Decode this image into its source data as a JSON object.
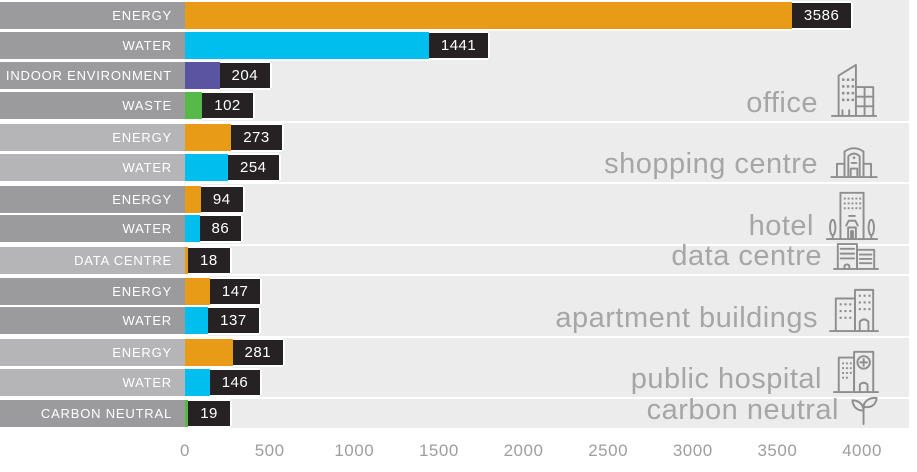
{
  "chart_data": {
    "type": "bar",
    "orientation": "horizontal",
    "title": "",
    "xlabel": "",
    "xlim": [
      0,
      4000
    ],
    "x_ticks": [
      "0",
      "500",
      "1000",
      "1500",
      "2000",
      "2500",
      "3000",
      "3500",
      "4000"
    ],
    "grid": false,
    "value_label_style": "black box at end of each bar",
    "groups": [
      {
        "label": "office",
        "icon": "office-building-icon",
        "shade": "dark",
        "rows": [
          {
            "category": "ENERGY",
            "value": 3586,
            "color_key": "energy_orange"
          },
          {
            "category": "WATER",
            "value": 1441,
            "color_key": "water_cyan"
          },
          {
            "category": "INDOOR ENVIRONMENT",
            "value": 204,
            "color_key": "indoor_purple"
          },
          {
            "category": "WASTE",
            "value": 102,
            "color_key": "waste_green"
          }
        ]
      },
      {
        "label": "shopping centre",
        "icon": "shopping-centre-icon",
        "shade": "light",
        "rows": [
          {
            "category": "ENERGY",
            "value": 273,
            "color_key": "energy_orange"
          },
          {
            "category": "WATER",
            "value": 254,
            "color_key": "water_cyan"
          }
        ]
      },
      {
        "label": "hotel",
        "icon": "hotel-icon",
        "shade": "dark",
        "rows": [
          {
            "category": "ENERGY",
            "value": 94,
            "color_key": "energy_orange"
          },
          {
            "category": "WATER",
            "value": 86,
            "color_key": "water_cyan"
          }
        ]
      },
      {
        "label": "data centre",
        "icon": "data-centre-icon",
        "shade": "light",
        "rows": [
          {
            "category": "DATA CENTRE",
            "value": 18,
            "color_key": "energy_orange"
          }
        ]
      },
      {
        "label": "apartment buildings",
        "icon": "apartment-buildings-icon",
        "shade": "dark",
        "rows": [
          {
            "category": "ENERGY",
            "value": 147,
            "color_key": "energy_orange"
          },
          {
            "category": "WATER",
            "value": 137,
            "color_key": "water_cyan"
          }
        ]
      },
      {
        "label": "public hospital",
        "icon": "public-hospital-icon",
        "shade": "light",
        "rows": [
          {
            "category": "ENERGY",
            "value": 281,
            "color_key": "energy_orange"
          },
          {
            "category": "WATER",
            "value": 146,
            "color_key": "water_cyan"
          }
        ]
      },
      {
        "label": "carbon neutral",
        "icon": "carbon-neutral-icon",
        "shade": "dark",
        "rows": [
          {
            "category": "CARBON NEUTRAL",
            "value": 19,
            "color_key": "waste_green"
          }
        ]
      }
    ]
  },
  "palette": {
    "energy_orange": "#E89B17",
    "water_cyan": "#00BFEF",
    "indoor_purple": "#5B55A1",
    "waste_green": "#56B948",
    "value_box_black": "#262223",
    "category_dark_gray": "#9B9B9D",
    "category_light_gray": "#B5B5B7",
    "plot_background": "#ECECEC",
    "caption_gray": "#A6A6A6",
    "axis_text_gray": "#9E9E9E",
    "icon_gray": "#8E8E8E"
  }
}
